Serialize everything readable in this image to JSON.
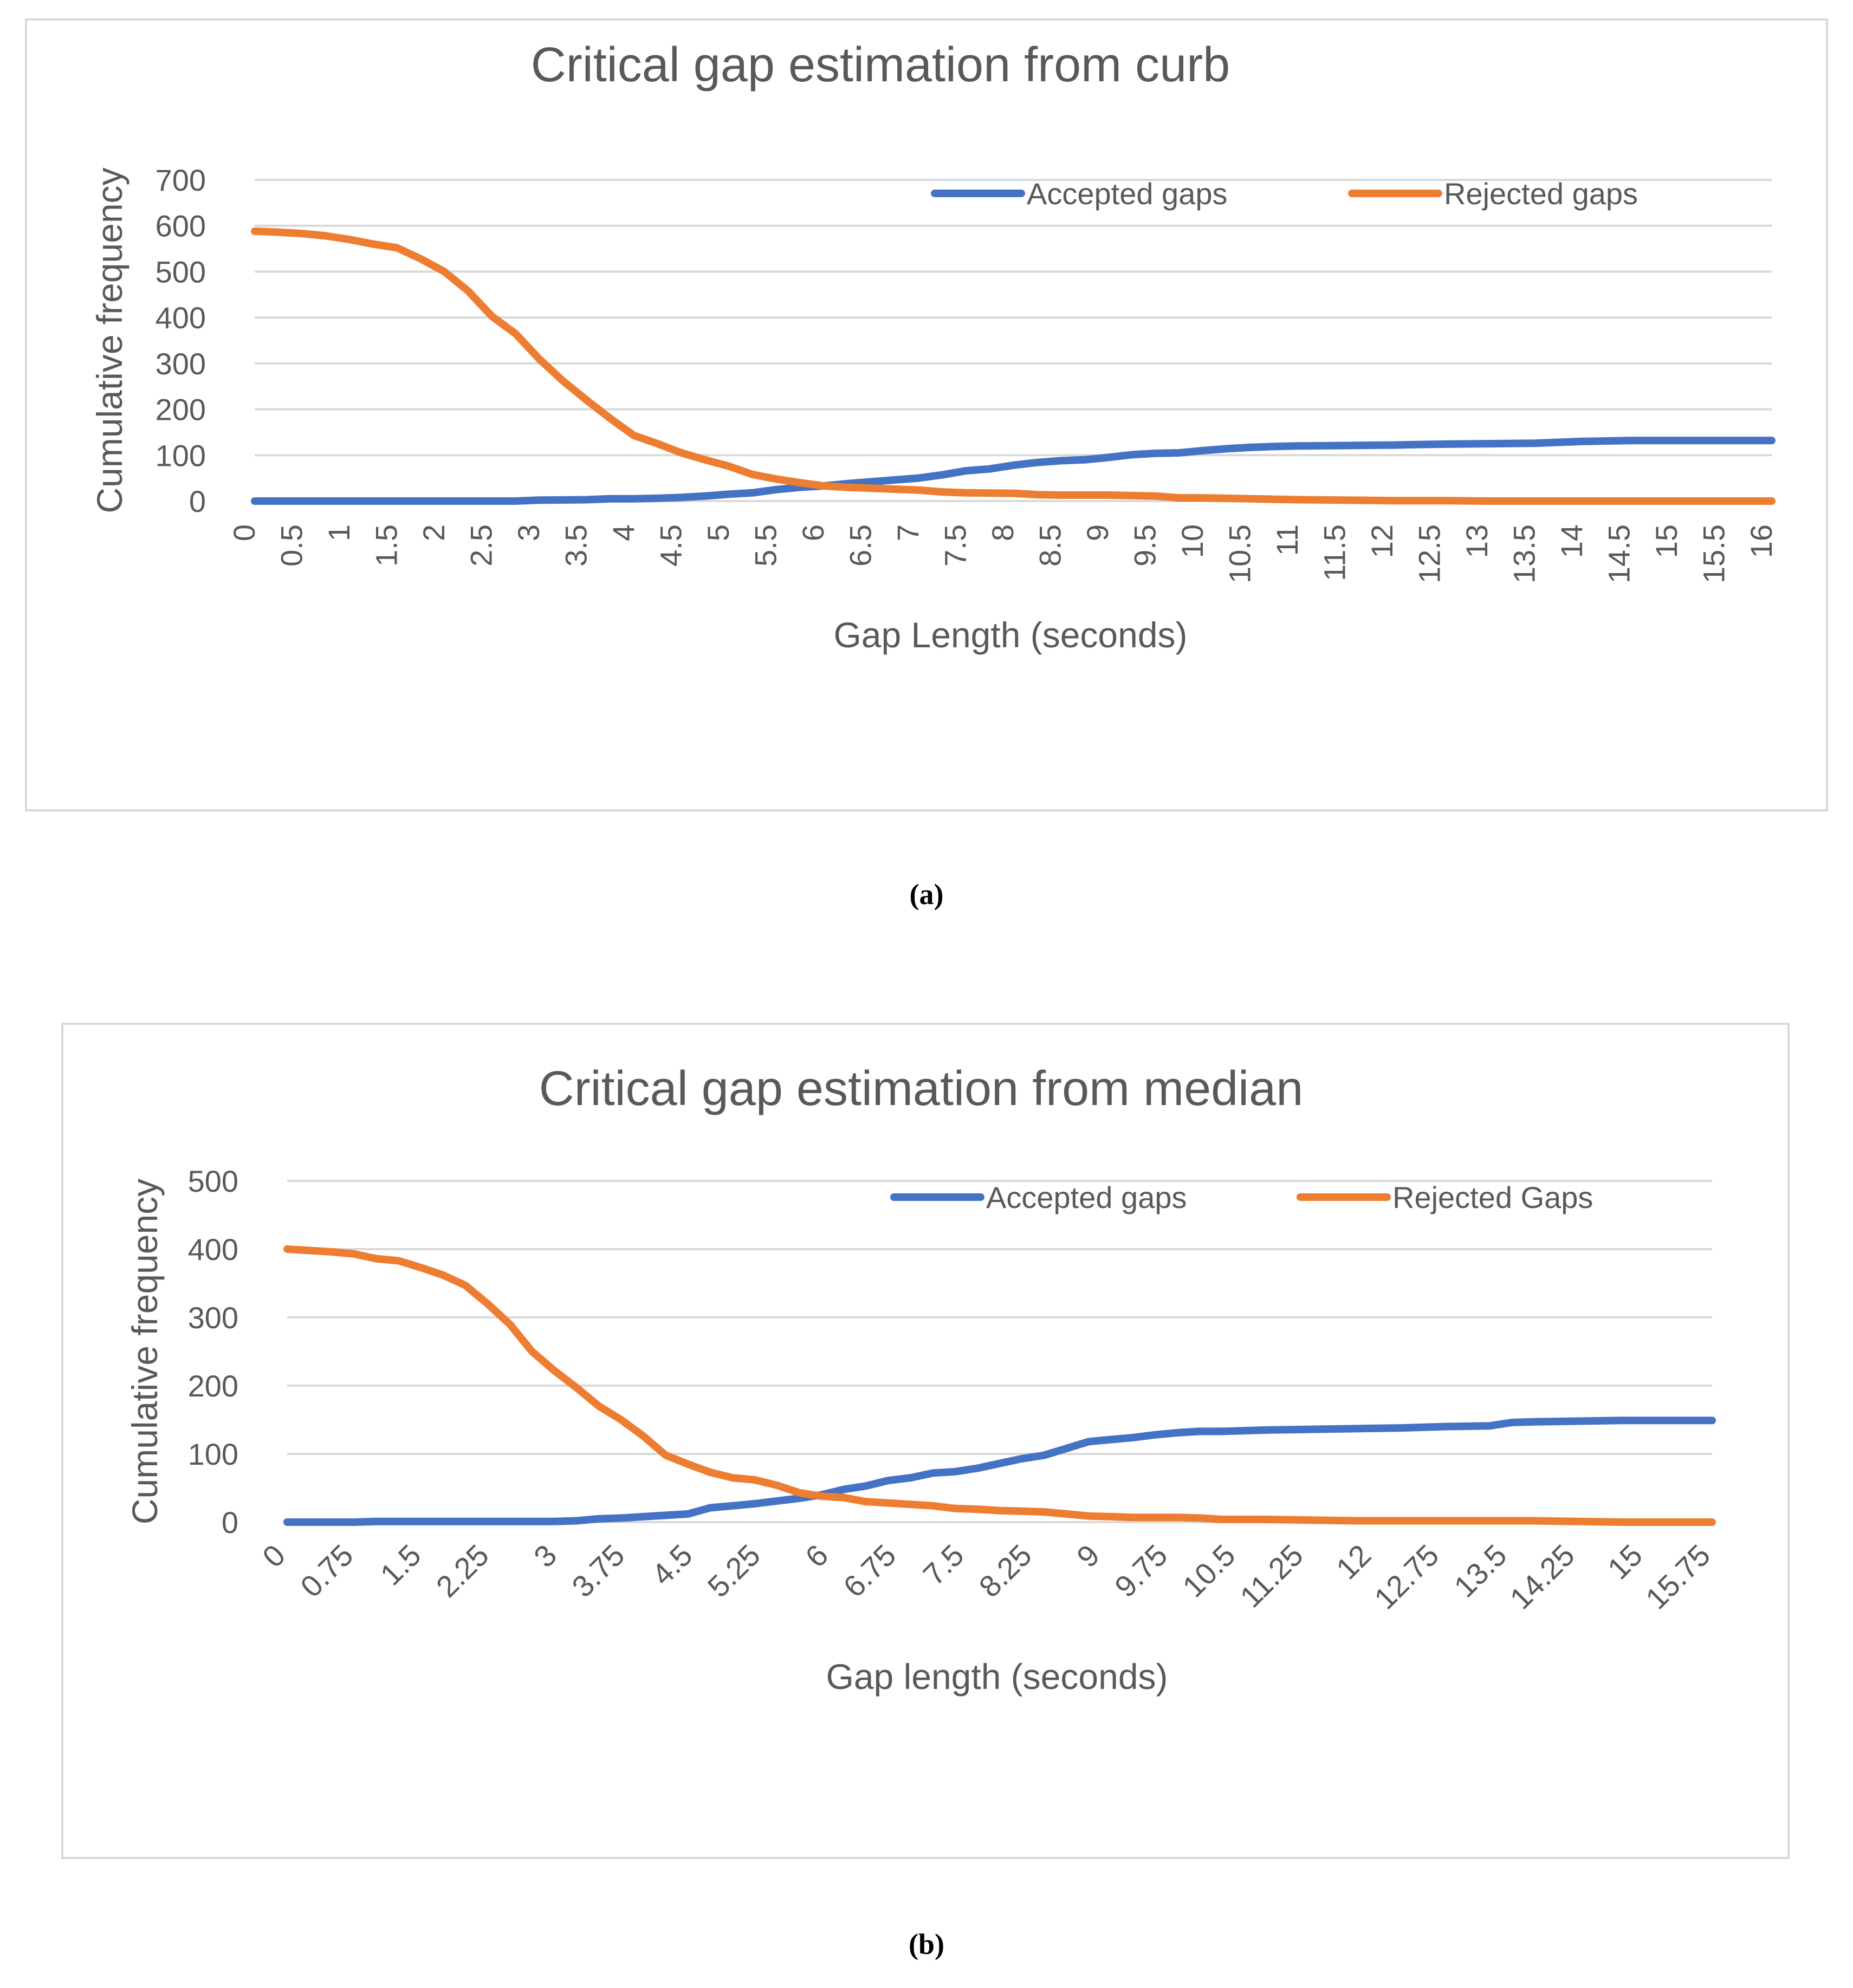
{
  "chart_data": [
    {
      "type": "line",
      "title": "Critical gap estimation from curb",
      "xlabel": "Gap Length (seconds)",
      "ylabel": "Cumulative frequency",
      "ylim": [
        0,
        700
      ],
      "yticks": [
        "0",
        "100",
        "200",
        "300",
        "400",
        "500",
        "600",
        "700"
      ],
      "xlim": [
        0,
        16
      ],
      "xtick_labels": [
        "0",
        "0.5",
        "1",
        "1.5",
        "2",
        "2.5",
        "3",
        "3.5",
        "4",
        "4.5",
        "5",
        "5.5",
        "6",
        "6.5",
        "7",
        "7.5",
        "8",
        "8.5",
        "9",
        "9.5",
        "10",
        "10.5",
        "11",
        "11.5",
        "12",
        "12.5",
        "13",
        "13.5",
        "14",
        "14.5",
        "15",
        "15.5",
        "16"
      ],
      "grid": true,
      "legend_position": "top-right",
      "series": [
        {
          "name": "Accepted gaps",
          "color": "#4472C4",
          "x": [
            0,
            0.5,
            1,
            1.5,
            2,
            2.5,
            2.75,
            3,
            3.5,
            3.75,
            4,
            4.25,
            4.5,
            4.75,
            5,
            5.25,
            5.5,
            5.75,
            6,
            6.25,
            6.5,
            6.75,
            7,
            7.25,
            7.5,
            7.75,
            8,
            8.25,
            8.5,
            8.75,
            9,
            9.25,
            9.5,
            9.75,
            10,
            10.25,
            10.5,
            10.75,
            11,
            11.5,
            12,
            12.25,
            12.5,
            13,
            13.5,
            14,
            14.5,
            15,
            16
          ],
          "y": [
            0,
            0,
            0,
            0,
            0,
            0,
            0,
            2,
            3,
            5,
            5,
            6,
            8,
            11,
            15,
            18,
            25,
            30,
            33,
            38,
            42,
            46,
            50,
            57,
            66,
            70,
            78,
            84,
            88,
            90,
            95,
            101,
            104,
            105,
            110,
            114,
            117,
            119,
            120,
            121,
            122,
            123,
            124,
            125,
            126,
            130,
            132,
            132,
            132
          ]
        },
        {
          "name": "Rejected gaps",
          "color": "#ED7D31",
          "x": [
            0,
            0.25,
            0.5,
            0.75,
            1,
            1.25,
            1.5,
            1.75,
            2,
            2.25,
            2.5,
            2.75,
            3,
            3.25,
            3.5,
            3.75,
            4,
            4.25,
            4.5,
            4.75,
            5,
            5.25,
            5.5,
            5.75,
            6,
            6.25,
            6.5,
            6.75,
            7,
            7.25,
            7.5,
            8,
            8.25,
            8.5,
            9,
            9.5,
            9.75,
            10,
            10.5,
            11,
            11.5,
            12,
            12.5,
            13,
            14,
            15,
            16
          ],
          "y": [
            588,
            586,
            583,
            578,
            570,
            560,
            552,
            528,
            500,
            458,
            403,
            365,
            310,
            262,
            220,
            180,
            143,
            125,
            105,
            90,
            76,
            58,
            48,
            40,
            33,
            30,
            28,
            26,
            24,
            20,
            18,
            17,
            14,
            13,
            13,
            11,
            7,
            7,
            5,
            3,
            2,
            1,
            1,
            0,
            0,
            0,
            0
          ]
        }
      ]
    },
    {
      "type": "line",
      "title": "Critical gap estimation from median",
      "xlabel": "Gap length (seconds)",
      "ylabel": "Cumulative frequency",
      "ylim": [
        0,
        500
      ],
      "yticks": [
        "0",
        "100",
        "200",
        "300",
        "400",
        "500"
      ],
      "xlim": [
        0,
        16
      ],
      "xtick_labels": [
        "0",
        "0.75",
        "1.5",
        "2.25",
        "3",
        "3.75",
        "4.5",
        "5.25",
        "6",
        "6.75",
        "7.5",
        "8.25",
        "9",
        "9.75",
        "10.5",
        "11.25",
        "12",
        "12.75",
        "13.5",
        "14.25",
        "15",
        "15.75"
      ],
      "grid": true,
      "legend_position": "top-right",
      "series": [
        {
          "name": "Accepted gaps",
          "color": "#4472C4",
          "x": [
            0,
            0.75,
            1,
            1.5,
            2,
            2.5,
            3,
            3.25,
            3.5,
            3.75,
            4,
            4.25,
            4.5,
            4.75,
            5,
            5.25,
            5.5,
            5.75,
            6,
            6.25,
            6.5,
            6.75,
            7,
            7.25,
            7.5,
            7.75,
            8,
            8.25,
            8.5,
            8.75,
            9,
            9.25,
            9.5,
            9.75,
            10,
            10.25,
            10.5,
            11,
            11.5,
            12,
            12.5,
            13,
            13.5,
            13.75,
            14,
            14.5,
            15,
            16
          ],
          "y": [
            0,
            0,
            1,
            1,
            1,
            1,
            1,
            2,
            5,
            6,
            8,
            10,
            12,
            21,
            24,
            27,
            31,
            35,
            40,
            48,
            53,
            61,
            65,
            72,
            74,
            79,
            86,
            93,
            98,
            108,
            118,
            121,
            124,
            128,
            131,
            133,
            133,
            135,
            136,
            137,
            138,
            140,
            141,
            146,
            147,
            148,
            149,
            149
          ]
        },
        {
          "name": "Rejected Gaps",
          "color": "#ED7D31",
          "x": [
            0,
            0.25,
            0.5,
            0.75,
            1,
            1.25,
            1.5,
            1.75,
            2,
            2.25,
            2.5,
            2.75,
            3,
            3.25,
            3.5,
            3.75,
            4,
            4.25,
            4.5,
            4.75,
            5,
            5.25,
            5.5,
            5.75,
            6,
            6.25,
            6.5,
            6.75,
            7,
            7.25,
            7.5,
            7.75,
            8,
            8.25,
            8.5,
            8.75,
            9,
            9.25,
            9.5,
            10,
            10.25,
            10.5,
            11,
            11.5,
            12,
            13,
            14,
            14.5,
            15,
            16
          ],
          "y": [
            400,
            398,
            396,
            393,
            386,
            383,
            373,
            362,
            347,
            320,
            290,
            250,
            222,
            197,
            170,
            150,
            126,
            98,
            85,
            73,
            65,
            62,
            54,
            43,
            38,
            36,
            30,
            28,
            26,
            24,
            20,
            19,
            17,
            16,
            15,
            12,
            9,
            8,
            7,
            7,
            6,
            4,
            4,
            3,
            2,
            2,
            2,
            1,
            0,
            0
          ]
        }
      ]
    }
  ],
  "panels": {
    "a": "(a)",
    "b": "(b)"
  }
}
